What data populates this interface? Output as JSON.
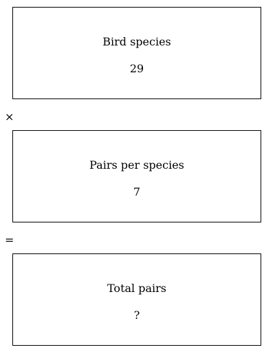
{
  "boxes": [
    {
      "label": "Bird species",
      "value": "29"
    },
    {
      "label": "Pairs per species",
      "value": "7"
    },
    {
      "label": "Total pairs",
      "value": "?"
    }
  ],
  "operators": [
    "×",
    "="
  ]
}
